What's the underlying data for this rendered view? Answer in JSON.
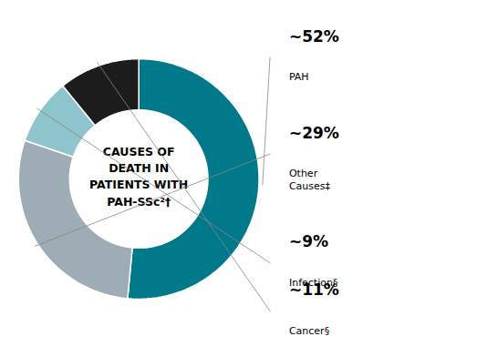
{
  "chart_data": {
    "type": "pie",
    "title": "CAUSES OF\nDEATH IN\nPATIENTS WITH\nPAH-SSc²†",
    "categories": [
      "PAH",
      "Other\nCauses‡",
      "Infection§",
      "Cancer§"
    ],
    "values": [
      52,
      29,
      9,
      11
    ],
    "value_labels": [
      "~52%",
      "~29%",
      "~9%",
      "~11%"
    ],
    "colors": [
      "#007a8a",
      "#9eadb5",
      "#8ec4cc",
      "#1c1c1c"
    ],
    "data_labels": true,
    "tick_labels": false
  }
}
